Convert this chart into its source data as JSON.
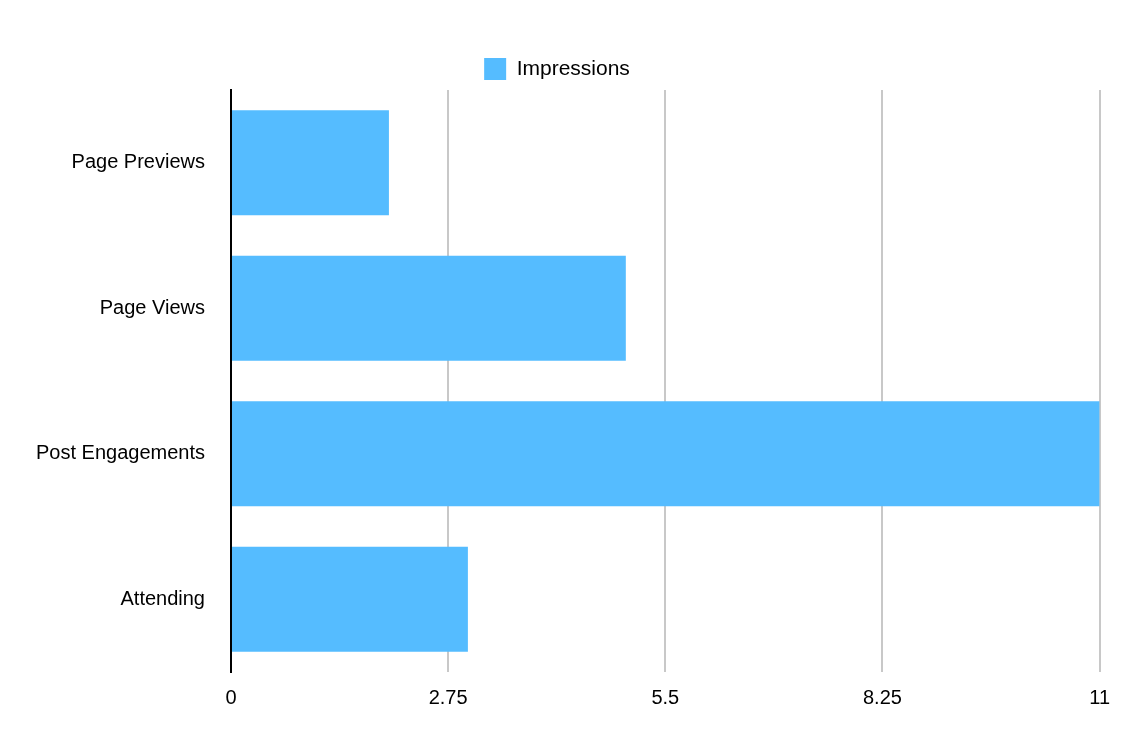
{
  "chart_data": {
    "type": "bar",
    "orientation": "horizontal",
    "categories": [
      "Page Previews",
      "Page Views",
      "Post Engagements",
      "Attending"
    ],
    "series": [
      {
        "name": "Impressions",
        "color": "#55bcff",
        "values": [
          2,
          5,
          11,
          3
        ]
      }
    ],
    "xlim": [
      0,
      11
    ],
    "xticks": [
      0,
      2.75,
      5.5,
      8.25,
      11
    ],
    "grid": "x",
    "legend": "top"
  }
}
